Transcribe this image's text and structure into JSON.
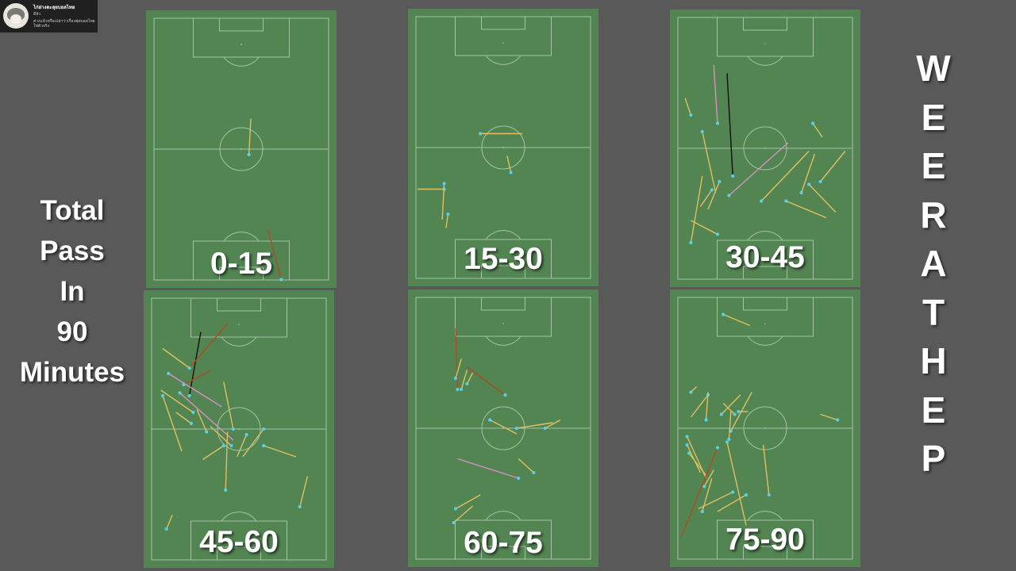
{
  "badge": {
    "line1": "ไก่ย่างตะลุยบอลไทย",
    "line2": "ดีลัว",
    "line3": "ต่างแล้วหรือเปล่าว่าเรื่องฟุตบอลไทยใช่ตัวจริง"
  },
  "title_lines": [
    "Total",
    "Pass",
    "In",
    "90",
    "Minutes"
  ],
  "side_letters": [
    "W",
    "E",
    "E",
    "R",
    "A",
    "T",
    "H",
    "E",
    "P"
  ],
  "colors": {
    "background": "#595959",
    "pitch": "#538553",
    "pitch_line": "#a4c2a4",
    "pass_yellow": "#e0c060",
    "pass_red": "#b04a22",
    "pass_pink": "#d691c2",
    "pass_black": "#111111",
    "receiver_dot": "#5ad0e6"
  },
  "pitches": [
    {
      "label": "0-15",
      "passes": [
        [
          "y",
          0.54,
          0.52,
          0.55,
          0.39
        ],
        [
          "r",
          0.71,
          0.97,
          0.64,
          0.79
        ]
      ]
    },
    {
      "label": "15-30",
      "passes": [
        [
          "y",
          0.38,
          0.45,
          0.6,
          0.45
        ],
        [
          "y",
          0.54,
          0.59,
          0.52,
          0.53
        ],
        [
          "y",
          0.19,
          0.65,
          0.05,
          0.65
        ],
        [
          "y",
          0.19,
          0.63,
          0.18,
          0.76
        ],
        [
          "y",
          0.21,
          0.74,
          0.2,
          0.79
        ]
      ]
    },
    {
      "label": "30-45",
      "passes": [
        [
          "y",
          0.11,
          0.38,
          0.08,
          0.32
        ],
        [
          "p",
          0.25,
          0.41,
          0.23,
          0.2
        ],
        [
          "k",
          0.33,
          0.6,
          0.3,
          0.23
        ],
        [
          "y",
          0.17,
          0.44,
          0.24,
          0.66
        ],
        [
          "p",
          0.31,
          0.67,
          0.62,
          0.48
        ],
        [
          "y",
          0.22,
          0.65,
          0.16,
          0.71
        ],
        [
          "y",
          0.11,
          0.84,
          0.17,
          0.6
        ],
        [
          "y",
          0.25,
          0.81,
          0.11,
          0.76
        ],
        [
          "y",
          0.48,
          0.69,
          0.73,
          0.51
        ],
        [
          "y",
          0.69,
          0.66,
          0.76,
          0.52
        ],
        [
          "y",
          0.79,
          0.62,
          0.92,
          0.51
        ],
        [
          "y",
          0.73,
          0.63,
          0.87,
          0.73
        ],
        [
          "y",
          0.61,
          0.69,
          0.82,
          0.75
        ],
        [
          "y",
          0.75,
          0.41,
          0.8,
          0.46
        ],
        [
          "y",
          0.26,
          0.62,
          0.2,
          0.72
        ]
      ]
    },
    {
      "label": "45-60",
      "passes": [
        [
          "y",
          0.24,
          0.28,
          0.1,
          0.21
        ],
        [
          "k",
          0.24,
          0.38,
          0.3,
          0.15
        ],
        [
          "r",
          0.24,
          0.28,
          0.44,
          0.12
        ],
        [
          "r",
          0.21,
          0.34,
          0.35,
          0.29
        ],
        [
          "p",
          0.13,
          0.3,
          0.41,
          0.42
        ],
        [
          "p",
          0.19,
          0.37,
          0.47,
          0.54
        ],
        [
          "y",
          0.26,
          0.44,
          0.09,
          0.36
        ],
        [
          "y",
          0.25,
          0.48,
          0.17,
          0.44
        ],
        [
          "y",
          0.1,
          0.38,
          0.2,
          0.58
        ],
        [
          "y",
          0.47,
          0.5,
          0.42,
          0.33
        ],
        [
          "y",
          0.33,
          0.51,
          0.28,
          0.43
        ],
        [
          "y",
          0.54,
          0.52,
          0.49,
          0.6
        ],
        [
          "y",
          0.42,
          0.56,
          0.31,
          0.61
        ],
        [
          "y",
          0.63,
          0.5,
          0.52,
          0.6
        ],
        [
          "y",
          0.46,
          0.56,
          0.35,
          0.49
        ],
        [
          "y",
          0.63,
          0.56,
          0.8,
          0.6
        ],
        [
          "y",
          0.43,
          0.72,
          0.44,
          0.51
        ],
        [
          "y",
          0.82,
          0.78,
          0.86,
          0.67
        ],
        [
          "y",
          0.12,
          0.86,
          0.15,
          0.81
        ]
      ]
    },
    {
      "label": "60-75",
      "passes": [
        [
          "r",
          0.26,
          0.36,
          0.25,
          0.14
        ],
        [
          "r",
          0.51,
          0.38,
          0.31,
          0.28
        ],
        [
          "y",
          0.28,
          0.36,
          0.31,
          0.29
        ],
        [
          "y",
          0.25,
          0.32,
          0.28,
          0.25
        ],
        [
          "y",
          0.31,
          0.34,
          0.34,
          0.3
        ],
        [
          "y",
          0.43,
          0.47,
          0.57,
          0.52
        ],
        [
          "y",
          0.57,
          0.5,
          0.76,
          0.48
        ],
        [
          "y",
          0.72,
          0.5,
          0.8,
          0.47
        ],
        [
          "p",
          0.58,
          0.68,
          0.26,
          0.61
        ],
        [
          "y",
          0.66,
          0.66,
          0.58,
          0.61
        ],
        [
          "y",
          0.25,
          0.79,
          0.38,
          0.74
        ],
        [
          "y",
          0.24,
          0.84,
          0.34,
          0.78
        ]
      ]
    },
    {
      "label": "75-90",
      "passes": [
        [
          "y",
          0.28,
          0.09,
          0.42,
          0.13
        ],
        [
          "y",
          0.11,
          0.37,
          0.14,
          0.35
        ],
        [
          "y",
          0.2,
          0.38,
          0.11,
          0.46
        ],
        [
          "y",
          0.19,
          0.47,
          0.2,
          0.37
        ],
        [
          "y",
          0.27,
          0.45,
          0.37,
          0.38
        ],
        [
          "y",
          0.34,
          0.45,
          0.28,
          0.41
        ],
        [
          "y",
          0.36,
          0.44,
          0.41,
          0.44
        ],
        [
          "y",
          0.32,
          0.51,
          0.43,
          0.37
        ],
        [
          "y",
          0.31,
          0.54,
          0.32,
          0.44
        ],
        [
          "y",
          0.88,
          0.47,
          0.79,
          0.45
        ],
        [
          "y",
          0.52,
          0.74,
          0.49,
          0.56
        ],
        [
          "y",
          0.09,
          0.53,
          0.19,
          0.68
        ],
        [
          "y",
          0.09,
          0.56,
          0.16,
          0.66
        ],
        [
          "y",
          0.1,
          0.59,
          0.19,
          0.67
        ],
        [
          "y",
          0.18,
          0.71,
          0.23,
          0.65
        ],
        [
          "r",
          0.25,
          0.57,
          0.06,
          0.89
        ],
        [
          "y",
          0.33,
          0.73,
          0.15,
          0.79
        ],
        [
          "y",
          0.3,
          0.55,
          0.4,
          0.85
        ],
        [
          "y",
          0.4,
          0.74,
          0.25,
          0.8
        ],
        [
          "y",
          0.17,
          0.8,
          0.22,
          0.68
        ]
      ]
    }
  ]
}
